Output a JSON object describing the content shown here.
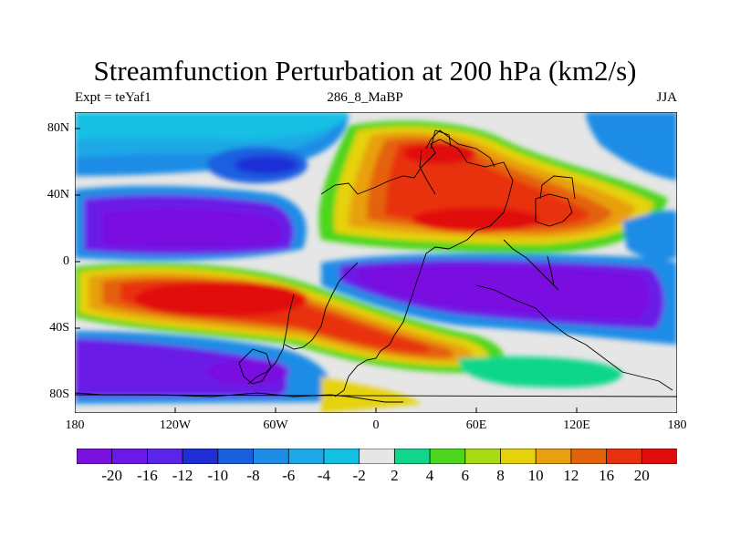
{
  "title": "Streamfunction Perturbation at 200 hPa (km2/s)",
  "left_string": "Expt = teYaf1",
  "center_string": "286_8_MaBP",
  "right_string": "JJA",
  "lat_labels": [
    "80N",
    "40N",
    "0",
    "40S",
    "80S"
  ],
  "lon_labels": [
    "180",
    "120W",
    "60W",
    "0",
    "60E",
    "120E",
    "180"
  ],
  "colorbar": {
    "labels": [
      "-20",
      "-16",
      "-12",
      "-10",
      "-8",
      "-6",
      "-4",
      "-2",
      "2",
      "4",
      "6",
      "8",
      "10",
      "12",
      "16",
      "20"
    ],
    "colors": [
      "#7a10e0",
      "#6a1ae6",
      "#5a24ea",
      "#1f2fd6",
      "#1a5fe0",
      "#1e8ce6",
      "#1aa9e6",
      "#12c0e4",
      "#e6e6e6",
      "#0fd68a",
      "#4cd61e",
      "#a8dc12",
      "#e6d20a",
      "#e8a010",
      "#e4620a",
      "#e8300e",
      "#e10c0c"
    ]
  },
  "colors": {
    "missing_gray": "#e6e6e6",
    "coast": "#000000"
  }
}
